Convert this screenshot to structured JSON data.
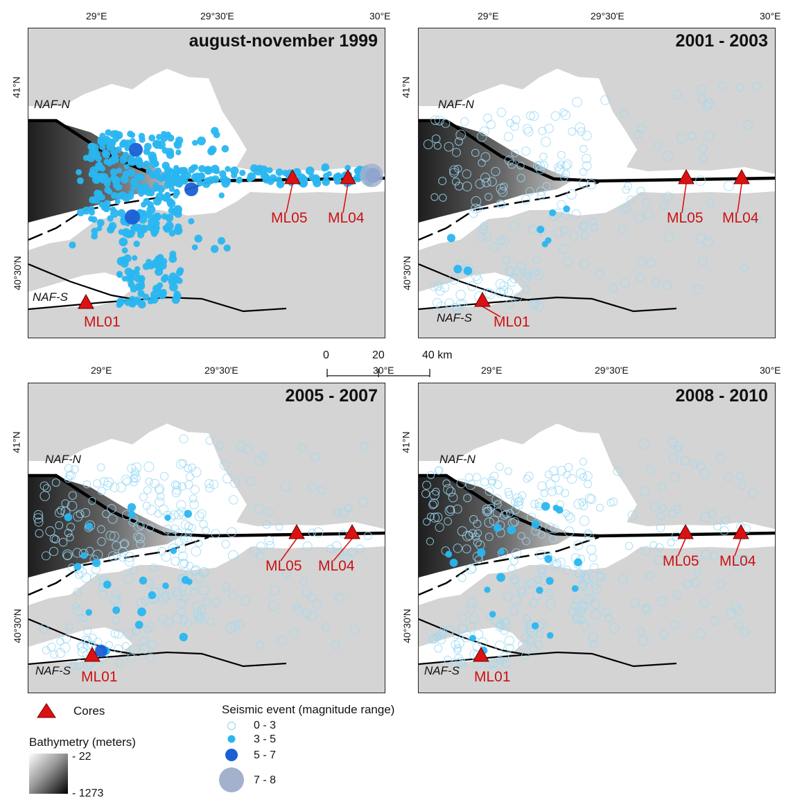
{
  "panels": [
    {
      "title": "august-november 1999",
      "x_ticks": [
        "29°E",
        "29°30'E",
        "30°E"
      ],
      "y_ticks": [
        "41°N",
        "40°30'N"
      ],
      "period": "1999"
    },
    {
      "title": "2001 - 2003",
      "x_ticks": [
        "29°E",
        "29°30'E",
        "30°E"
      ],
      "y_ticks": [
        "41°N",
        "40°30'N"
      ],
      "period": "2001"
    },
    {
      "title": "2005 - 2007",
      "x_ticks": [
        "29°E",
        "29°30'E",
        "30°E"
      ],
      "y_ticks": [
        "41°N",
        "40°30'N"
      ],
      "period": "2005"
    },
    {
      "title": "2008 - 2010",
      "x_ticks": [
        "29°E",
        "29°30'E",
        "30°E"
      ],
      "y_ticks": [
        "41°N",
        "40°30'N"
      ],
      "period": "2008"
    }
  ],
  "faults": {
    "north": "NAF-N",
    "south": "NAF-S"
  },
  "cores": [
    "ML05",
    "ML04",
    "ML01"
  ],
  "scale_bar": {
    "labels": [
      "0",
      "20",
      "40 km"
    ]
  },
  "legend": {
    "cores_label": "Cores",
    "seismic_title": "Seismic event (magnitude range)",
    "seismic_classes": [
      {
        "label": "0 - 3",
        "style": "open",
        "color": "#9ad9f5"
      },
      {
        "label": "3 - 5",
        "style": "filled",
        "color": "#29b6f0"
      },
      {
        "label": "5 - 7",
        "style": "filled",
        "color": "#1a5fd6"
      },
      {
        "label": "7 - 8",
        "style": "filled",
        "color": "#a3b1cc"
      }
    ],
    "bathymetry_title": "Bathymetry (meters)",
    "bathymetry_min": "- 22",
    "bathymetry_max": "- 1273"
  },
  "colors": {
    "land": "#d4d4d4",
    "water": "#ffffff",
    "core_marker": "#dd1111",
    "fault": "#000000"
  }
}
